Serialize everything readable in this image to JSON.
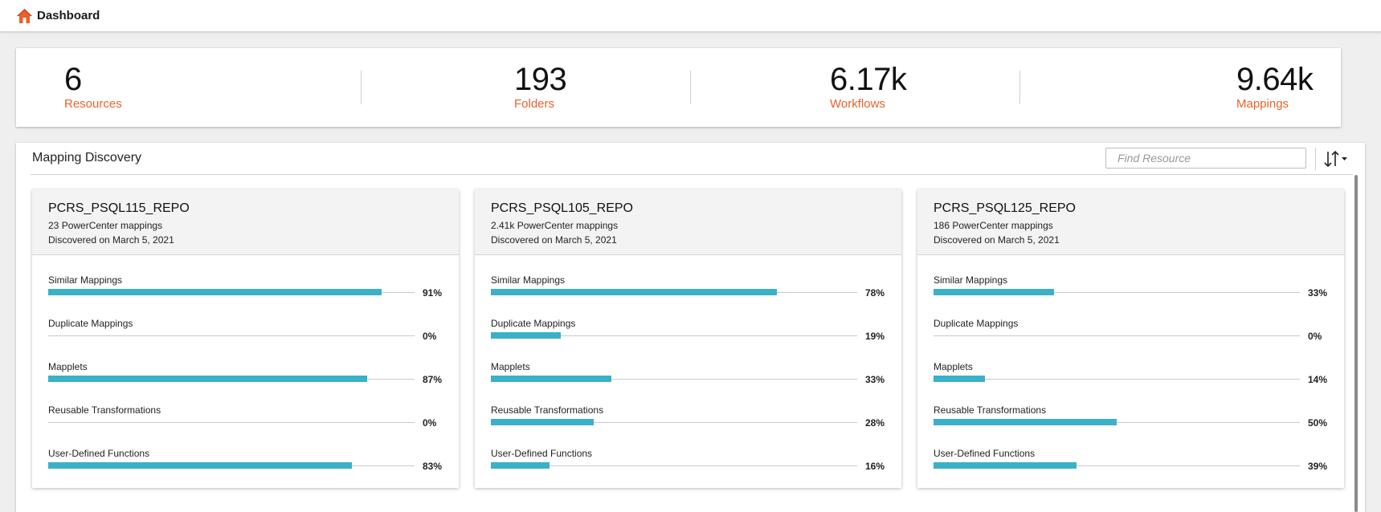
{
  "header": {
    "title": "Dashboard",
    "home_icon": "home-icon"
  },
  "stats": [
    {
      "value": "6",
      "label": "Resources"
    },
    {
      "value": "193",
      "label": "Folders"
    },
    {
      "value": "6.17k",
      "label": "Workflows"
    },
    {
      "value": "9.64k",
      "label": "Mappings"
    }
  ],
  "discovery": {
    "title": "Mapping Discovery",
    "search_placeholder": "Find Resource",
    "sort_icon": "sort-icon",
    "cards": [
      {
        "title": "PCRS_PSQL115_REPO",
        "mappings_count": "23",
        "mappings_suffix": " PowerCenter mappings",
        "discovered": "Discovered on March 5, 2021",
        "metrics": [
          {
            "label": "Similar Mappings",
            "percent": 91,
            "percent_text": "91%"
          },
          {
            "label": "Duplicate Mappings",
            "percent": 0,
            "percent_text": "0%"
          },
          {
            "label": "Mapplets",
            "percent": 87,
            "percent_text": "87%"
          },
          {
            "label": "Reusable Transformations",
            "percent": 0,
            "percent_text": "0%"
          },
          {
            "label": "User-Defined Functions",
            "percent": 83,
            "percent_text": "83%"
          }
        ]
      },
      {
        "title": "PCRS_PSQL105_REPO",
        "mappings_count": "2.41k",
        "mappings_suffix": " PowerCenter mappings",
        "discovered": "Discovered on March 5, 2021",
        "metrics": [
          {
            "label": "Similar Mappings",
            "percent": 78,
            "percent_text": "78%"
          },
          {
            "label": "Duplicate Mappings",
            "percent": 19,
            "percent_text": "19%"
          },
          {
            "label": "Mapplets",
            "percent": 33,
            "percent_text": "33%"
          },
          {
            "label": "Reusable Transformations",
            "percent": 28,
            "percent_text": "28%"
          },
          {
            "label": "User-Defined Functions",
            "percent": 16,
            "percent_text": "16%"
          }
        ]
      },
      {
        "title": "PCRS_PSQL125_REPO",
        "mappings_count": "186",
        "mappings_suffix": " PowerCenter mappings",
        "discovered": "Discovered on March 5, 2021",
        "metrics": [
          {
            "label": "Similar Mappings",
            "percent": 33,
            "percent_text": "33%"
          },
          {
            "label": "Duplicate Mappings",
            "percent": 0,
            "percent_text": "0%"
          },
          {
            "label": "Mapplets",
            "percent": 14,
            "percent_text": "14%"
          },
          {
            "label": "Reusable Transformations",
            "percent": 50,
            "percent_text": "50%"
          },
          {
            "label": "User-Defined Functions",
            "percent": 39,
            "percent_text": "39%"
          }
        ]
      }
    ]
  },
  "colors": {
    "accent": "#e8622b",
    "bar": "#3bb0c9"
  }
}
